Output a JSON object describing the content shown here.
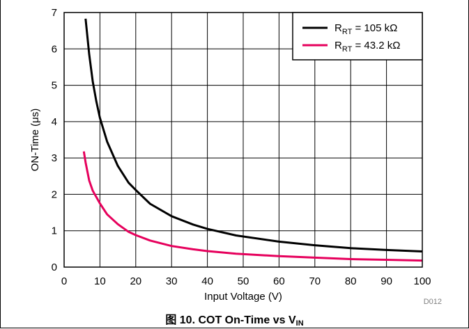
{
  "chart_data": {
    "type": "line",
    "xlabel": "Input Voltage (V)",
    "ylabel": "ON-Time (μs)",
    "xlim": [
      0,
      100
    ],
    "ylim": [
      0,
      7
    ],
    "xticks": [
      0,
      10,
      20,
      30,
      40,
      50,
      60,
      70,
      80,
      90,
      100
    ],
    "yticks": [
      0,
      1,
      2,
      3,
      4,
      5,
      6,
      7
    ],
    "grid": true,
    "legend_position": "top-right",
    "series": [
      {
        "name": "R_RT = 105 kΩ",
        "label_main": "R",
        "label_sub": "RT",
        "label_rest": " = 105 kΩ",
        "color": "#000000",
        "x": [
          6,
          7,
          8,
          9,
          10,
          12,
          15,
          18,
          20,
          24,
          30,
          36,
          40,
          48,
          60,
          70,
          80,
          90,
          100
        ],
        "y": [
          6.83,
          5.85,
          5.1,
          4.55,
          4.1,
          3.45,
          2.78,
          2.32,
          2.12,
          1.74,
          1.4,
          1.17,
          1.05,
          0.87,
          0.7,
          0.6,
          0.52,
          0.47,
          0.43
        ]
      },
      {
        "name": "R_RT = 43.2 kΩ",
        "label_main": "R",
        "label_sub": "RT",
        "label_rest": " = 43.2 kΩ",
        "color": "#e6005c",
        "x": [
          5.5,
          6,
          7,
          8,
          10,
          12,
          15,
          18,
          20,
          24,
          30,
          36,
          40,
          48,
          60,
          70,
          80,
          90,
          100
        ],
        "y": [
          3.18,
          2.88,
          2.38,
          2.1,
          1.75,
          1.45,
          1.18,
          0.97,
          0.88,
          0.73,
          0.58,
          0.49,
          0.44,
          0.37,
          0.3,
          0.26,
          0.22,
          0.2,
          0.18
        ]
      }
    ]
  },
  "figure_code": "D012",
  "caption": {
    "prefix": "图 10. COT On-Time vs V",
    "subscript": "IN"
  }
}
